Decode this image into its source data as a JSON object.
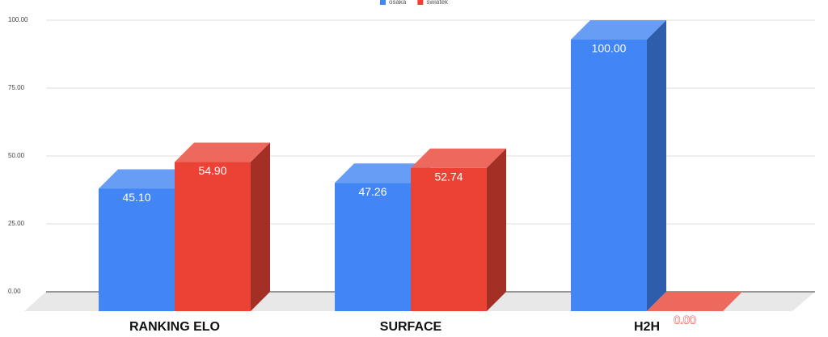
{
  "chart_data": {
    "type": "bar",
    "legend": "top",
    "categories": [
      "RANKING ELO",
      "SURFACE",
      "H2H"
    ],
    "series": [
      {
        "name": "osaka",
        "color": "#4285f4",
        "values": [
          45.1,
          47.26,
          100
        ],
        "value_labels": [
          "45.10",
          "47.26",
          "100.00"
        ]
      },
      {
        "name": "swiatek",
        "color": "#ea4335",
        "values": [
          54.9,
          52.74,
          0
        ],
        "value_labels": [
          "54.90",
          "52.74",
          "0.00"
        ]
      }
    ],
    "ylim": [
      0,
      100
    ],
    "yticks": [
      {
        "value": 0,
        "label": "0.00"
      },
      {
        "value": 25,
        "label": "25.00"
      },
      {
        "value": 50,
        "label": "50.00"
      },
      {
        "value": 75,
        "label": "75.00"
      },
      {
        "value": 100,
        "label": "100.00"
      }
    ],
    "grid": true
  }
}
